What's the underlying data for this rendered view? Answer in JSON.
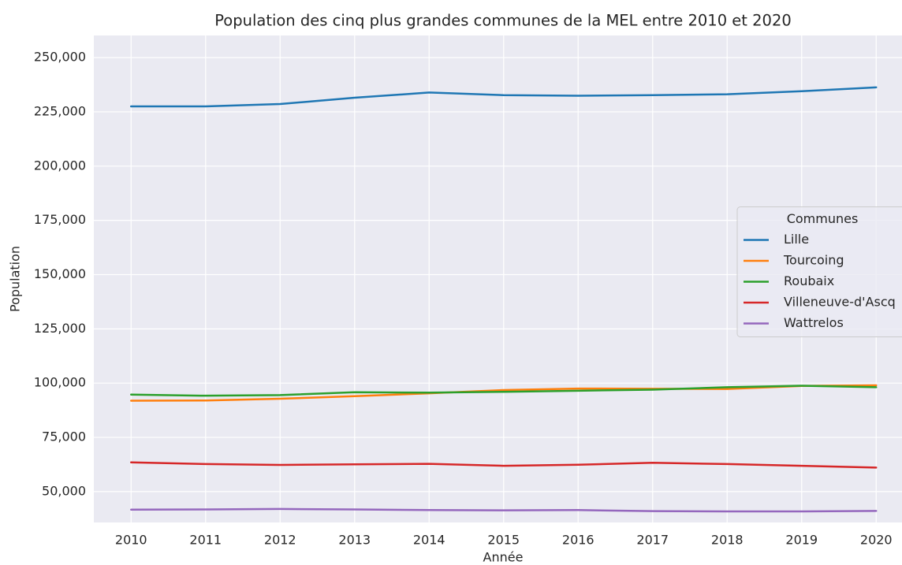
{
  "chart_data": {
    "type": "line",
    "title": "Population des cinq plus grandes communes de la MEL entre 2010 et 2020",
    "xlabel": "Année",
    "ylabel": "Population",
    "x": [
      2010,
      2011,
      2012,
      2013,
      2014,
      2015,
      2016,
      2017,
      2018,
      2019,
      2020
    ],
    "xlim": [
      2009.5,
      2020.5
    ],
    "xticks": [
      2010,
      2011,
      2012,
      2013,
      2014,
      2015,
      2016,
      2017,
      2018,
      2019,
      2020
    ],
    "ylim": [
      35800,
      260200
    ],
    "yticks": [
      {
        "value": 50000,
        "label": "50,000"
      },
      {
        "value": 75000,
        "label": "75,000"
      },
      {
        "value": 100000,
        "label": "100,000"
      },
      {
        "value": 125000,
        "label": "125,000"
      },
      {
        "value": 150000,
        "label": "150,000"
      },
      {
        "value": 175000,
        "label": "175,000"
      },
      {
        "value": 200000,
        "label": "200,000"
      },
      {
        "value": 225000,
        "label": "225,000"
      },
      {
        "value": 250000,
        "label": "250,000"
      }
    ],
    "grid": true,
    "legend": {
      "title": "Communes",
      "position": "center right"
    },
    "series": [
      {
        "name": "Lille",
        "color": "#1f77b4",
        "values": [
          227500,
          227500,
          228600,
          231500,
          233900,
          232700,
          232400,
          232700,
          233100,
          234500,
          236300
        ]
      },
      {
        "name": "Tourcoing",
        "color": "#ff7f0e",
        "values": [
          91900,
          92000,
          92800,
          94000,
          95300,
          96800,
          97500,
          97400,
          97300,
          98700,
          99000
        ]
      },
      {
        "name": "Roubaix",
        "color": "#2ca02c",
        "values": [
          94700,
          94200,
          94500,
          95800,
          95600,
          96000,
          96500,
          97000,
          98100,
          98800,
          98100
        ]
      },
      {
        "name": "Villeneuve-d'Ascq",
        "color": "#d62728",
        "values": [
          63500,
          62700,
          62300,
          62600,
          62800,
          61900,
          62400,
          63300,
          62700,
          61900,
          61100
        ]
      },
      {
        "name": "Wattrelos",
        "color": "#9467bd",
        "values": [
          41700,
          41800,
          42000,
          41800,
          41500,
          41400,
          41500,
          41000,
          40900,
          40900,
          41100
        ]
      }
    ]
  }
}
